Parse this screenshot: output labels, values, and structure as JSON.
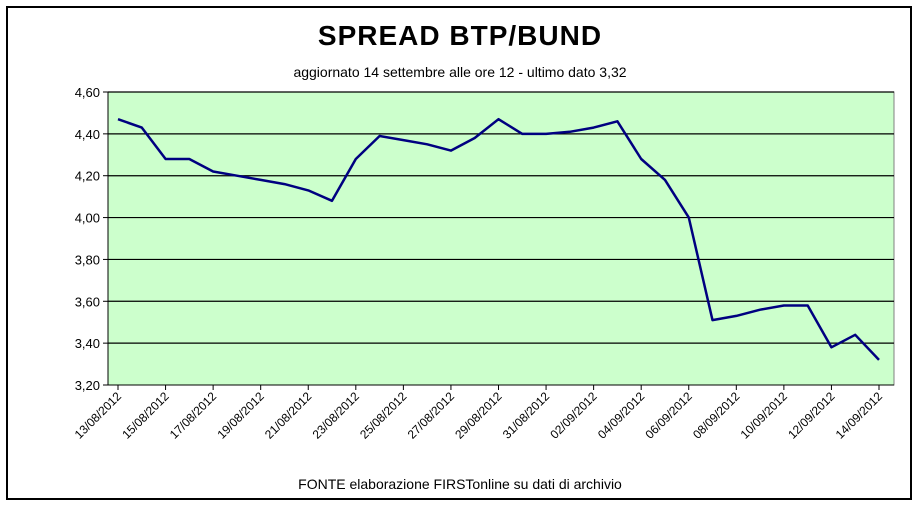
{
  "chart_data": {
    "type": "line",
    "title": "SPREAD  BTP/BUND",
    "subtitle": "aggiornato 14 settembre alle ore 12 - ultimo dato 3,32",
    "source": "FONTE elaborazione FIRSTonline su dati di archivio",
    "xlabel": "",
    "ylabel": "",
    "ylim": [
      3.2,
      4.6
    ],
    "yticks": [
      "3,20",
      "3,40",
      "3,60",
      "3,80",
      "4,00",
      "4,20",
      "4,40",
      "4,60"
    ],
    "xtick_labels": [
      "13/08/2012",
      "15/08/2012",
      "17/08/2012",
      "19/08/2012",
      "21/08/2012",
      "23/08/2012",
      "25/08/2012",
      "27/08/2012",
      "29/08/2012",
      "31/08/2012",
      "02/09/2012",
      "04/09/2012",
      "06/09/2012",
      "08/09/2012",
      "10/09/2012",
      "12/09/2012",
      "14/09/2012"
    ],
    "grid": true,
    "legend": "none",
    "series": [
      {
        "points": [
          [
            "2012-08-13",
            4.47
          ],
          [
            "2012-08-14",
            4.43
          ],
          [
            "2012-08-15",
            4.28
          ],
          [
            "2012-08-16",
            4.28
          ],
          [
            "2012-08-17",
            4.22
          ],
          [
            "2012-08-18",
            4.2
          ],
          [
            "2012-08-19",
            4.18
          ],
          [
            "2012-08-20",
            4.16
          ],
          [
            "2012-08-21",
            4.13
          ],
          [
            "2012-08-22",
            4.08
          ],
          [
            "2012-08-23",
            4.28
          ],
          [
            "2012-08-24",
            4.39
          ],
          [
            "2012-08-25",
            4.37
          ],
          [
            "2012-08-26",
            4.35
          ],
          [
            "2012-08-27",
            4.32
          ],
          [
            "2012-08-28",
            4.38
          ],
          [
            "2012-08-29",
            4.47
          ],
          [
            "2012-08-30",
            4.4
          ],
          [
            "2012-08-31",
            4.4
          ],
          [
            "2012-09-01",
            4.41
          ],
          [
            "2012-09-02",
            4.43
          ],
          [
            "2012-09-03",
            4.46
          ],
          [
            "2012-09-04",
            4.28
          ],
          [
            "2012-09-05",
            4.18
          ],
          [
            "2012-09-06",
            4.0
          ],
          [
            "2012-09-07",
            3.51
          ],
          [
            "2012-09-08",
            3.53
          ],
          [
            "2012-09-09",
            3.56
          ],
          [
            "2012-09-10",
            3.58
          ],
          [
            "2012-09-11",
            3.58
          ],
          [
            "2012-09-12",
            3.38
          ],
          [
            "2012-09-13",
            3.44
          ],
          [
            "2012-09-14",
            3.32
          ]
        ]
      }
    ],
    "colors": {
      "plot_background": "#ccffcc",
      "line": "#000080",
      "grid": "#000000"
    }
  }
}
